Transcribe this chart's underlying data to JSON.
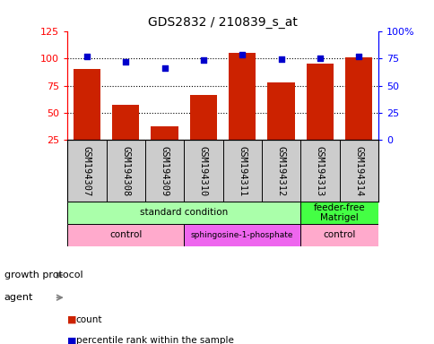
{
  "title": "GDS2832 / 210839_s_at",
  "samples": [
    "GSM194307",
    "GSM194308",
    "GSM194309",
    "GSM194310",
    "GSM194311",
    "GSM194312",
    "GSM194313",
    "GSM194314"
  ],
  "counts": [
    90,
    57,
    38,
    66,
    105,
    78,
    95,
    101
  ],
  "percentile_ranks": [
    77,
    72,
    66,
    73,
    78,
    74,
    75,
    77
  ],
  "growth_protocol_groups": [
    {
      "label": "standard condition",
      "start": 0,
      "end": 6,
      "color": "#aaffaa"
    },
    {
      "label": "feeder-free\nMatrigel",
      "start": 6,
      "end": 8,
      "color": "#44ff44"
    }
  ],
  "agent_groups": [
    {
      "label": "control",
      "start": 0,
      "end": 3,
      "color": "#ffaacc"
    },
    {
      "label": "sphingosine-1-phosphate",
      "start": 3,
      "end": 6,
      "color": "#ee66ee"
    },
    {
      "label": "control",
      "start": 6,
      "end": 8,
      "color": "#ffaacc"
    }
  ],
  "bar_color": "#cc2200",
  "dot_color": "#0000cc",
  "left_ylim": [
    25,
    125
  ],
  "left_yticks": [
    25,
    50,
    75,
    100,
    125
  ],
  "right_ylim": [
    0,
    100
  ],
  "right_yticks": [
    0,
    25,
    50,
    75,
    100
  ],
  "right_yticklabels": [
    "0",
    "25",
    "50",
    "75",
    "100%"
  ],
  "hline_values": [
    50,
    75,
    100
  ],
  "sample_bg_color": "#cccccc",
  "legend_items": [
    {
      "label": "count",
      "color": "#cc2200"
    },
    {
      "label": "percentile rank within the sample",
      "color": "#0000cc"
    }
  ]
}
